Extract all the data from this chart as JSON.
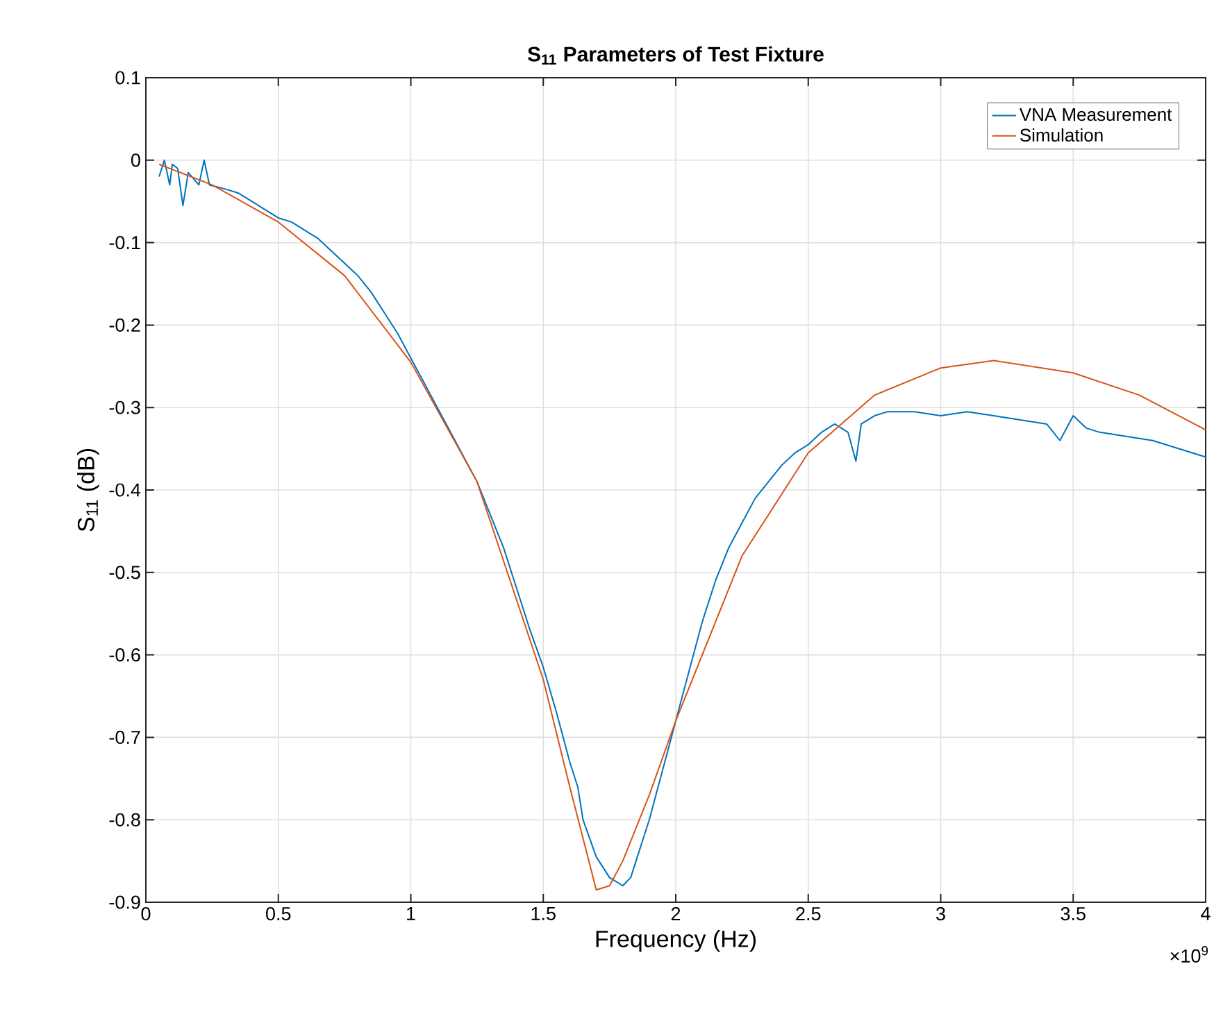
{
  "chart_data": {
    "type": "line",
    "title": "**S$_{11}$ Parameters of Test Fixture**",
    "xlabel": "Frequency (Hz)",
    "ylabel": "S$_{11}$ (dB)",
    "annotations": [
      "×10$^{9}$"
    ],
    "xlim": [
      0,
      4
    ],
    "ylim": [
      -0.9,
      0.1
    ],
    "xticks": [
      0,
      0.5,
      1,
      1.5,
      2,
      2.5,
      3,
      3.5,
      4
    ],
    "yticks": [
      -0.9,
      -0.8,
      -0.7,
      -0.6,
      -0.5,
      -0.4,
      -0.3,
      -0.2,
      -0.1,
      0,
      0.1
    ],
    "grid": true,
    "legend": "top right",
    "marker": "none",
    "line_style": "solid",
    "series": [
      {
        "name": "VNA Measurement",
        "color": "#0072bd",
        "x": [
          0.05,
          0.07,
          0.09,
          0.1,
          0.12,
          0.14,
          0.16,
          0.2,
          0.22,
          0.24,
          0.3,
          0.35,
          0.4,
          0.45,
          0.5,
          0.55,
          0.6,
          0.65,
          0.7,
          0.75,
          0.8,
          0.85,
          0.9,
          0.95,
          1.0,
          1.05,
          1.1,
          1.15,
          1.2,
          1.25,
          1.3,
          1.35,
          1.4,
          1.45,
          1.5,
          1.55,
          1.6,
          1.63,
          1.65,
          1.7,
          1.75,
          1.8,
          1.83,
          1.85,
          1.88,
          1.9,
          1.95,
          2.0,
          2.05,
          2.1,
          2.15,
          2.2,
          2.25,
          2.3,
          2.35,
          2.4,
          2.45,
          2.5,
          2.55,
          2.6,
          2.65,
          2.68,
          2.7,
          2.75,
          2.8,
          2.9,
          3.0,
          3.1,
          3.2,
          3.3,
          3.4,
          3.45,
          3.5,
          3.55,
          3.6,
          3.7,
          3.8,
          3.9,
          4.0
        ],
        "values": [
          -0.02,
          0.0,
          -0.03,
          -0.005,
          -0.01,
          -0.055,
          -0.015,
          -0.03,
          0.0,
          -0.03,
          -0.035,
          -0.04,
          -0.05,
          -0.06,
          -0.07,
          -0.075,
          -0.085,
          -0.095,
          -0.11,
          -0.125,
          -0.14,
          -0.16,
          -0.185,
          -0.21,
          -0.24,
          -0.27,
          -0.3,
          -0.33,
          -0.36,
          -0.39,
          -0.43,
          -0.47,
          -0.52,
          -0.57,
          -0.615,
          -0.67,
          -0.73,
          -0.76,
          -0.8,
          -0.845,
          -0.87,
          -0.88,
          -0.87,
          -0.85,
          -0.82,
          -0.8,
          -0.74,
          -0.68,
          -0.62,
          -0.56,
          -0.51,
          -0.47,
          -0.44,
          -0.41,
          -0.39,
          -0.37,
          -0.355,
          -0.345,
          -0.33,
          -0.32,
          -0.33,
          -0.365,
          -0.32,
          -0.31,
          -0.305,
          -0.305,
          -0.31,
          -0.305,
          -0.31,
          -0.315,
          -0.32,
          -0.34,
          -0.31,
          -0.325,
          -0.33,
          -0.335,
          -0.34,
          -0.35,
          -0.36
        ]
      },
      {
        "name": "Simulation",
        "color": "#d95319",
        "x": [
          0.05,
          0.25,
          0.5,
          0.75,
          1.0,
          1.25,
          1.5,
          1.6,
          1.7,
          1.75,
          1.8,
          1.9,
          2.0,
          2.25,
          2.5,
          2.75,
          3.0,
          3.2,
          3.5,
          3.75,
          4.0
        ],
        "values": [
          -0.005,
          -0.03,
          -0.075,
          -0.14,
          -0.245,
          -0.39,
          -0.63,
          -0.76,
          -0.885,
          -0.88,
          -0.85,
          -0.77,
          -0.68,
          -0.48,
          -0.355,
          -0.285,
          -0.252,
          -0.243,
          -0.258,
          -0.285,
          -0.327
        ]
      }
    ]
  }
}
